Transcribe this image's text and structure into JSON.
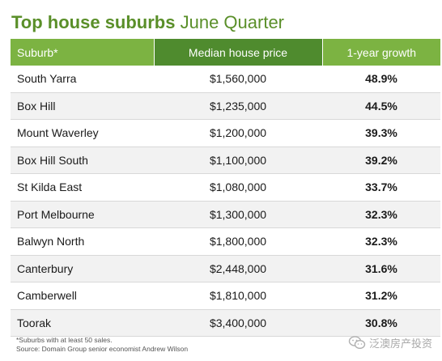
{
  "chart_data": {
    "type": "table",
    "title_bold": "Top house suburbs",
    "title_rest": "June Quarter",
    "columns": [
      "Suburb*",
      "Median house price",
      "1-year growth"
    ],
    "rows": [
      {
        "suburb": "South Yarra",
        "price": "$1,560,000",
        "growth": "48.9%"
      },
      {
        "suburb": "Box Hill",
        "price": "$1,235,000",
        "growth": "44.5%"
      },
      {
        "suburb": "Mount Waverley",
        "price": "$1,200,000",
        "growth": "39.3%"
      },
      {
        "suburb": "Box Hill South",
        "price": "$1,100,000",
        "growth": "39.2%"
      },
      {
        "suburb": "St Kilda East",
        "price": "$1,080,000",
        "growth": "33.7%"
      },
      {
        "suburb": "Port Melbourne",
        "price": "$1,300,000",
        "growth": "32.3%"
      },
      {
        "suburb": "Balwyn North",
        "price": "$1,800,000",
        "growth": "32.3%"
      },
      {
        "suburb": "Canterbury",
        "price": "$2,448,000",
        "growth": "31.6%"
      },
      {
        "suburb": "Camberwell",
        "price": "$1,810,000",
        "growth": "31.2%"
      },
      {
        "suburb": "Toorak",
        "price": "$3,400,000",
        "growth": "30.8%"
      }
    ],
    "footnotes": [
      "*Suburbs with at least 50 sales.",
      "Source: Domain Group senior economist Andrew Wilson"
    ]
  },
  "watermark": {
    "icon": "wechat-icon",
    "text": "泛澳房产投资"
  },
  "colors": {
    "title": "#5a8f29",
    "header_light": "#7cb342",
    "header_dark": "#4f8b2e",
    "row_alt": "#f2f2f2"
  }
}
